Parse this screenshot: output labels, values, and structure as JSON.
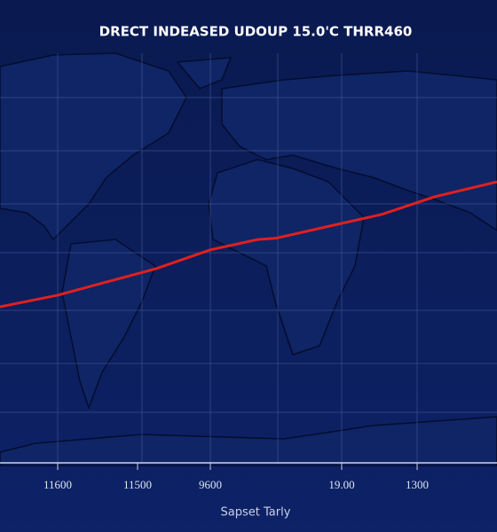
{
  "chart_data": {
    "type": "line",
    "title": "DRECT INDEASED UDOUP 15.0'C THRR460",
    "x_label": "Sapset Tarly",
    "x_tick_labels": [
      "11600",
      "11500",
      "9600",
      "19.00",
      "1300"
    ],
    "xlim": [
      0,
      100
    ],
    "ylim": [
      0,
      100
    ],
    "series": [
      {
        "color": "#e0201e",
        "x": [
          0,
          11.6,
          21.4,
          31.3,
          42.3,
          51.8,
          55.4,
          67.9,
          76.8,
          87.5,
          100
        ],
        "values": [
          38.5,
          41.3,
          44.5,
          47.7,
          52.3,
          54.8,
          55.1,
          58.5,
          60.9,
          65.2,
          68.8
        ]
      }
    ]
  }
}
